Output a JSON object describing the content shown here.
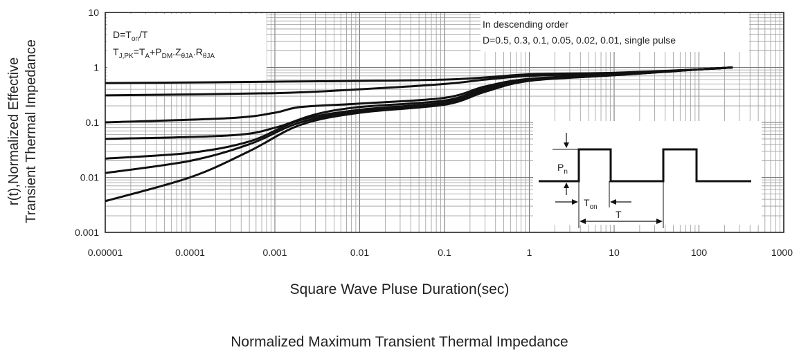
{
  "chart_data": {
    "type": "line",
    "title": "Normalized Maximum Transient Thermal Impedance",
    "xlabel": "Square Wave Pluse Duration(sec)",
    "ylabel": [
      "r(t),Normalized Effective",
      "Transient Thermal Impedance"
    ],
    "xscale": "log",
    "yscale": "log",
    "xlim": [
      1e-05,
      1000
    ],
    "ylim": [
      0.001,
      10
    ],
    "xticks": [
      "0.00001",
      "0.0001",
      "0.001",
      "0.01",
      "0.1",
      "1",
      "10",
      "100",
      "1000"
    ],
    "yticks": [
      "0.001",
      "0.01",
      "0.1",
      "1",
      "10"
    ],
    "grid": true,
    "legend_note": [
      "In descending order",
      "D=0.5, 0.3, 0.1, 0.05, 0.02, 0.01, single pulse"
    ],
    "formula_note": {
      "line1": {
        "main": "D=T",
        "sub": "on",
        "tail": "/T"
      },
      "line2": [
        {
          "t": "T"
        },
        {
          "t": "J,PK",
          "sub": true
        },
        {
          "t": "=T"
        },
        {
          "t": "A",
          "sub": true
        },
        {
          "t": "+P"
        },
        {
          "t": "DM",
          "sub": true
        },
        {
          "t": ".Z"
        },
        {
          "t": "θJA",
          "sub": true
        },
        {
          "t": ".R"
        },
        {
          "t": "θJA",
          "sub": true
        }
      ]
    },
    "inset": {
      "pn": "P",
      "pn_sub": "n",
      "ton": "T",
      "ton_sub": "on",
      "period": "T"
    },
    "series": [
      {
        "x": [
          1e-05,
          0.001,
          0.1,
          1,
          10,
          100,
          250
        ],
        "y": [
          0.52,
          0.55,
          0.6,
          0.75,
          0.8,
          0.92,
          1.0
        ]
      },
      {
        "x": [
          1e-05,
          0.001,
          0.01,
          0.1,
          0.3,
          1,
          10,
          100,
          250
        ],
        "y": [
          0.31,
          0.34,
          0.4,
          0.5,
          0.6,
          0.7,
          0.78,
          0.92,
          1.0
        ]
      },
      {
        "x": [
          1e-05,
          0.0003,
          0.001,
          0.002,
          0.01,
          0.1,
          0.3,
          1,
          10,
          100,
          250
        ],
        "y": [
          0.1,
          0.12,
          0.15,
          0.19,
          0.22,
          0.28,
          0.45,
          0.62,
          0.75,
          0.92,
          1.0
        ]
      },
      {
        "x": [
          1e-05,
          0.0003,
          0.001,
          0.003,
          0.01,
          0.1,
          0.3,
          1,
          10,
          100,
          250
        ],
        "y": [
          0.05,
          0.058,
          0.08,
          0.14,
          0.19,
          0.25,
          0.42,
          0.6,
          0.74,
          0.92,
          1.0
        ]
      },
      {
        "x": [
          1e-05,
          0.0001,
          0.0005,
          0.002,
          0.01,
          0.1,
          0.3,
          1,
          10,
          100,
          250
        ],
        "y": [
          0.022,
          0.028,
          0.045,
          0.11,
          0.17,
          0.23,
          0.4,
          0.59,
          0.73,
          0.92,
          1.0
        ]
      },
      {
        "x": [
          1e-05,
          0.0001,
          0.0005,
          0.002,
          0.01,
          0.1,
          0.3,
          1,
          10,
          100,
          250
        ],
        "y": [
          0.012,
          0.02,
          0.04,
          0.1,
          0.16,
          0.22,
          0.38,
          0.58,
          0.72,
          0.92,
          1.0
        ]
      },
      {
        "x": [
          1e-05,
          0.0001,
          0.0005,
          0.002,
          0.01,
          0.1,
          0.3,
          1,
          10,
          100,
          250
        ],
        "y": [
          0.0037,
          0.01,
          0.03,
          0.09,
          0.15,
          0.21,
          0.36,
          0.57,
          0.72,
          0.92,
          1.0
        ]
      }
    ]
  }
}
